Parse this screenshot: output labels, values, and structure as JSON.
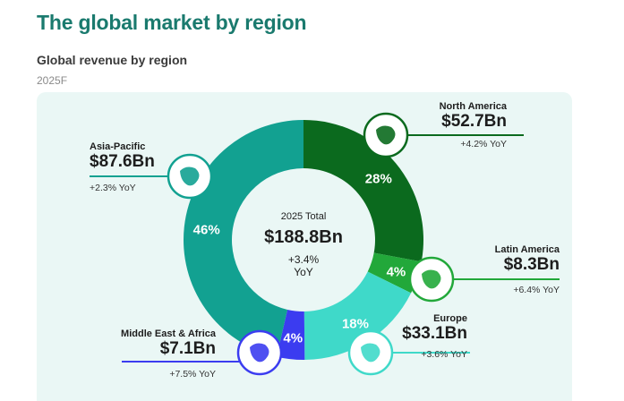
{
  "header": {
    "title": "The global market by region",
    "subtitle": "Global revenue by region",
    "year": "2025F"
  },
  "center": {
    "label": "2025 Total",
    "value": "$188.8Bn",
    "yoy_line1": "+3.4%",
    "yoy_line2": "YoY"
  },
  "chart_data": {
    "type": "pie",
    "title": "Global revenue by region",
    "unit": "$Bn",
    "total": 188.8,
    "slices": [
      {
        "name": "North America",
        "value": 52.7,
        "pct": 28,
        "pct_label": "28%",
        "value_label": "$52.7Bn",
        "yoy": "+4.2% YoY",
        "color": "#0b6a1e",
        "icon": "north-america-map-icon"
      },
      {
        "name": "Latin America",
        "value": 8.3,
        "pct": 4,
        "pct_label": "4%",
        "value_label": "$8.3Bn",
        "yoy": "+6.4% YoY",
        "color": "#22a83a",
        "icon": "latin-america-map-icon"
      },
      {
        "name": "Europe",
        "value": 33.1,
        "pct": 18,
        "pct_label": "18%",
        "value_label": "$33.1Bn",
        "yoy": "+3.6% YoY",
        "color": "#3fd9c9",
        "icon": "europe-map-icon"
      },
      {
        "name": "Middle East & Africa",
        "value": 7.1,
        "pct": 4,
        "pct_label": "4%",
        "value_label": "$7.1Bn",
        "yoy": "+7.5% YoY",
        "color": "#3b3cf0",
        "icon": "africa-map-icon"
      },
      {
        "name": "Asia-Pacific",
        "value": 87.6,
        "pct": 46,
        "pct_label": "46%",
        "value_label": "$87.6Bn",
        "yoy": "+2.3% YoY",
        "color": "#12a191",
        "icon": "asia-pacific-map-icon"
      }
    ]
  }
}
